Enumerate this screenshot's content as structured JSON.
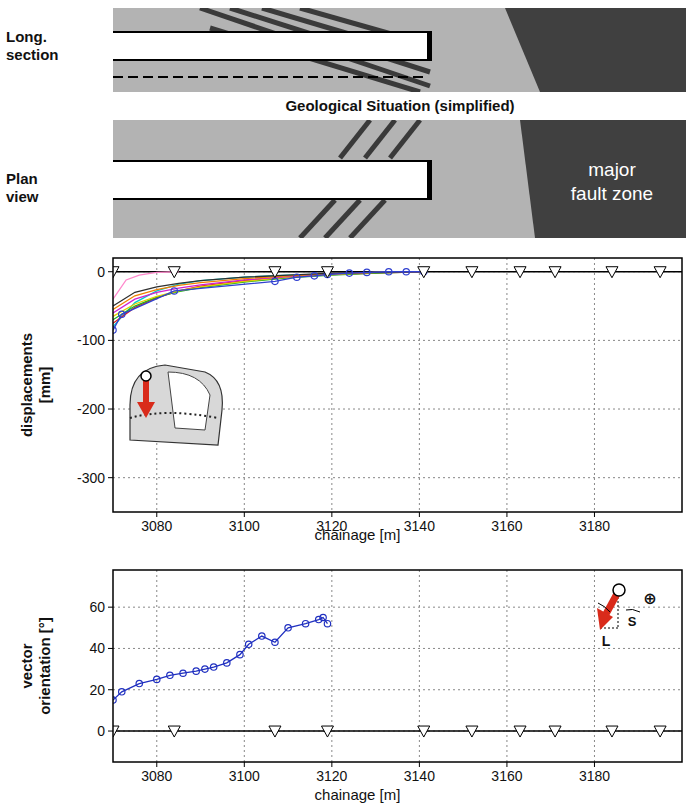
{
  "geology": {
    "long_section": "Long. section",
    "title": "Geological Situation (simplified)",
    "plan_view": "Plan view",
    "fault_zone": "major fault zone"
  },
  "chart_data": [
    {
      "type": "line",
      "y_label": "displacements [mm]",
      "x_label": "chainage [m]",
      "xlim": [
        3070,
        3200
      ],
      "xticks": [
        3080,
        3100,
        3120,
        3140,
        3160,
        3180
      ],
      "ylim": [
        -350,
        20
      ],
      "yticks": [
        -300,
        -200,
        -100,
        0
      ],
      "grid": true,
      "series": [
        {
          "color": "#00cccc",
          "x": [
            3070,
            3075,
            3080,
            3085,
            3090,
            3100,
            3110,
            3120,
            3130,
            3140
          ],
          "values": [
            -80,
            -45,
            -28,
            -18,
            -13,
            -8,
            -5,
            -3,
            -1,
            0
          ]
        },
        {
          "color": "#e02020",
          "x": [
            3070,
            3075,
            3080,
            3085,
            3090,
            3100,
            3110,
            3120,
            3130,
            3140
          ],
          "values": [
            -75,
            -52,
            -38,
            -28,
            -21,
            -13,
            -8,
            -4,
            -2,
            0
          ]
        },
        {
          "color": "#20b020",
          "x": [
            3070,
            3075,
            3080,
            3085,
            3090,
            3100,
            3110,
            3120,
            3130,
            3140
          ],
          "values": [
            -70,
            -50,
            -37,
            -29,
            -23,
            -15,
            -9,
            -5,
            -2,
            0
          ]
        },
        {
          "color": "#e0d000",
          "x": [
            3070,
            3075,
            3080,
            3085,
            3090,
            3100,
            3110,
            3120,
            3130,
            3140
          ],
          "values": [
            -65,
            -47,
            -36,
            -28,
            -22,
            -14,
            -8,
            -4,
            -1,
            0
          ]
        },
        {
          "color": "#d020d0",
          "x": [
            3070,
            3075,
            3080,
            3085,
            3090,
            3100,
            3110,
            3120,
            3130,
            3140
          ],
          "values": [
            -60,
            -40,
            -30,
            -24,
            -19,
            -12,
            -7,
            -3,
            -1,
            0
          ]
        },
        {
          "color": "#f08000",
          "x": [
            3070,
            3075,
            3080,
            3085,
            3090,
            3100,
            3110,
            3120,
            3130,
            3140
          ],
          "values": [
            -55,
            -35,
            -26,
            -20,
            -16,
            -10,
            -6,
            -3,
            -1,
            0
          ]
        },
        {
          "color": "#303030",
          "x": [
            3070,
            3075,
            3080,
            3085,
            3090,
            3100,
            3110,
            3120,
            3130,
            3140
          ],
          "values": [
            -50,
            -30,
            -22,
            -17,
            -13,
            -8,
            -5,
            -2,
            -1,
            0
          ]
        },
        {
          "color": "#ff88cc",
          "x": [
            3070,
            3073,
            3076,
            3080,
            3085
          ],
          "values": [
            -40,
            -12,
            -5,
            -1,
            0
          ]
        },
        {
          "color": "#3040d0",
          "marker": "circle",
          "x": [
            3070,
            3072,
            3084,
            3107,
            3112,
            3116,
            3119,
            3124,
            3128,
            3133,
            3137,
            3141
          ],
          "values": [
            -85,
            -62,
            -28,
            -14,
            -8,
            -6,
            -4,
            -2,
            -1,
            0,
            0,
            0
          ]
        },
        {
          "type": "scatter",
          "marker": "triangle",
          "color": "#ffffff",
          "x": [
            3070,
            3084,
            3107,
            3119,
            3141,
            3152,
            3163,
            3171,
            3184,
            3195
          ],
          "values": [
            0,
            0,
            0,
            0,
            0,
            0,
            0,
            0,
            0,
            0
          ]
        }
      ]
    },
    {
      "type": "line",
      "y_label": "vector orientation [°]",
      "x_label": "chainage [m]",
      "xlim": [
        3070,
        3200
      ],
      "xticks": [
        3080,
        3100,
        3120,
        3140,
        3160,
        3180
      ],
      "ylim": [
        -15,
        78
      ],
      "yticks": [
        0,
        20,
        40,
        60
      ],
      "grid": true,
      "annotations": [
        "⊕",
        "S",
        "L"
      ],
      "series": [
        {
          "color": "#2030c0",
          "marker": "circle",
          "x": [
            3070,
            3072,
            3076,
            3080,
            3083,
            3086,
            3089,
            3091,
            3093,
            3096,
            3099,
            3101,
            3104,
            3107,
            3110,
            3114,
            3117,
            3118,
            3119
          ],
          "values": [
            15,
            19,
            23,
            25,
            27,
            28,
            29,
            30,
            31,
            33,
            37,
            42,
            46,
            43,
            50,
            52,
            54,
            55,
            52
          ]
        },
        {
          "type": "scatter",
          "marker": "triangle",
          "color": "#ffffff",
          "x": [
            3070,
            3084,
            3107,
            3119,
            3141,
            3152,
            3163,
            3171,
            3184,
            3195
          ],
          "values": [
            0,
            0,
            0,
            0,
            0,
            0,
            0,
            0,
            0,
            0
          ]
        }
      ]
    }
  ]
}
